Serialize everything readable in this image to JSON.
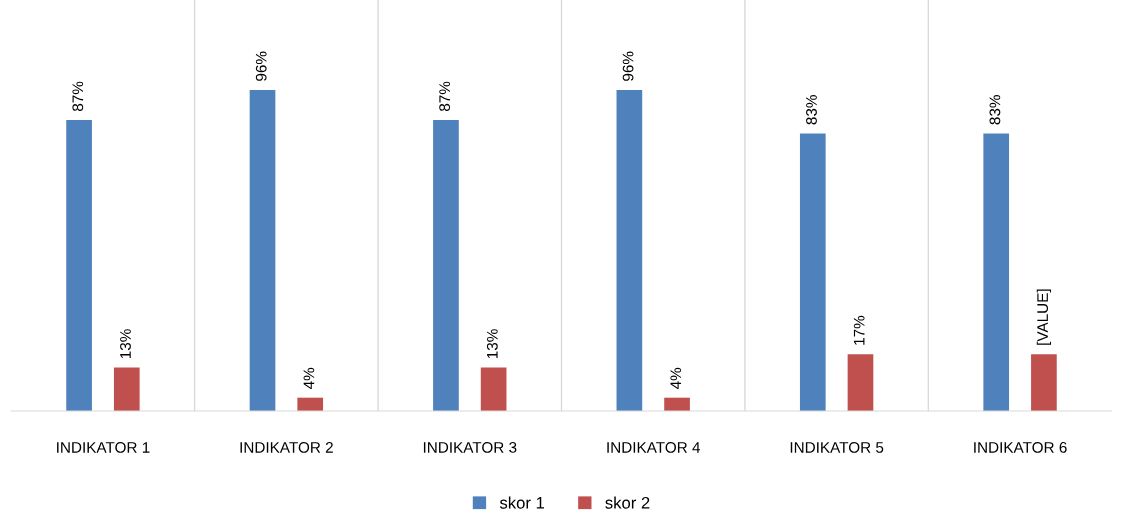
{
  "chart_data": {
    "type": "bar",
    "categories": [
      "INDIKATOR 1",
      "INDIKATOR 2",
      "INDIKATOR 3",
      "INDIKATOR 4",
      "INDIKATOR 5",
      "INDIKATOR 6"
    ],
    "series": [
      {
        "name": "skor 1",
        "color": "#4f81bd",
        "values": [
          87,
          96,
          87,
          96,
          83,
          83
        ],
        "value_labels": [
          "87%",
          "96%",
          "87%",
          "96%",
          "83%",
          "83%"
        ]
      },
      {
        "name": "skor 2",
        "color": "#c0504d",
        "values": [
          13,
          4,
          13,
          4,
          17,
          17
        ],
        "value_labels": [
          "13%",
          "4%",
          "13%",
          "4%",
          "17%",
          "[VALUE]"
        ]
      }
    ],
    "grid": "x",
    "legend": "bottom"
  }
}
